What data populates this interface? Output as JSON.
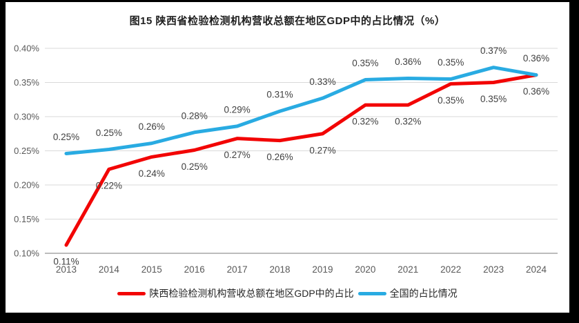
{
  "figure": {
    "title": "图15 陕西省检验检测机构营收总额在地区GDP中的占比情况（%）"
  },
  "chart_data": {
    "type": "line",
    "title": "图15 陕西省检验检测机构营收总额在地区GDP中的占比情况（%）",
    "categories": [
      "2013",
      "2014",
      "2015",
      "2016",
      "2017",
      "2018",
      "2019",
      "2020",
      "2021",
      "2022",
      "2023",
      "2024"
    ],
    "y_axis": {
      "min": 0.1,
      "max": 0.4,
      "grid": true,
      "ticks": [
        {
          "label": "0.40%",
          "value": 0.4
        },
        {
          "label": "0.35%",
          "value": 0.35
        },
        {
          "label": "0.30%",
          "value": 0.3
        },
        {
          "label": "0.25%",
          "value": 0.25
        },
        {
          "label": "0.20%",
          "value": 0.2
        },
        {
          "label": "0.15%",
          "value": 0.15
        },
        {
          "label": "0.10%",
          "value": 0.1
        }
      ]
    },
    "series": [
      {
        "name": "陕西检验检测机构营收总额在地区GDP中的占比",
        "color": "#F20505",
        "label_position": "below",
        "labels": [
          "0.11%",
          "0.22%",
          "0.24%",
          "0.25%",
          "0.27%",
          "0.26%",
          "0.27%",
          "0.32%",
          "0.32%",
          "0.35%",
          "0.35%",
          "0.36%"
        ],
        "values": [
          0.112,
          0.223,
          0.241,
          0.251,
          0.268,
          0.265,
          0.275,
          0.317,
          0.317,
          0.348,
          0.35,
          0.361
        ]
      },
      {
        "name": "全国的占比情况",
        "color": "#29ABE2",
        "label_position": "above",
        "labels": [
          "0.25%",
          "0.25%",
          "0.26%",
          "0.28%",
          "0.29%",
          "0.31%",
          "0.33%",
          "0.35%",
          "0.36%",
          "0.35%",
          "0.37%",
          "0.36%"
        ],
        "values": [
          0.246,
          0.252,
          0.261,
          0.277,
          0.286,
          0.308,
          0.327,
          0.354,
          0.356,
          0.355,
          0.372,
          0.361
        ]
      }
    ],
    "legend_position": "bottom"
  },
  "colors": {
    "frame": "#000000",
    "background": "#FFFFFF",
    "gridline": "#D9D9D9",
    "axis_line": "#A6A6A6",
    "tick_text": "#595959",
    "data_label_text": "#404040",
    "title_text": "#1F1F1F"
  }
}
